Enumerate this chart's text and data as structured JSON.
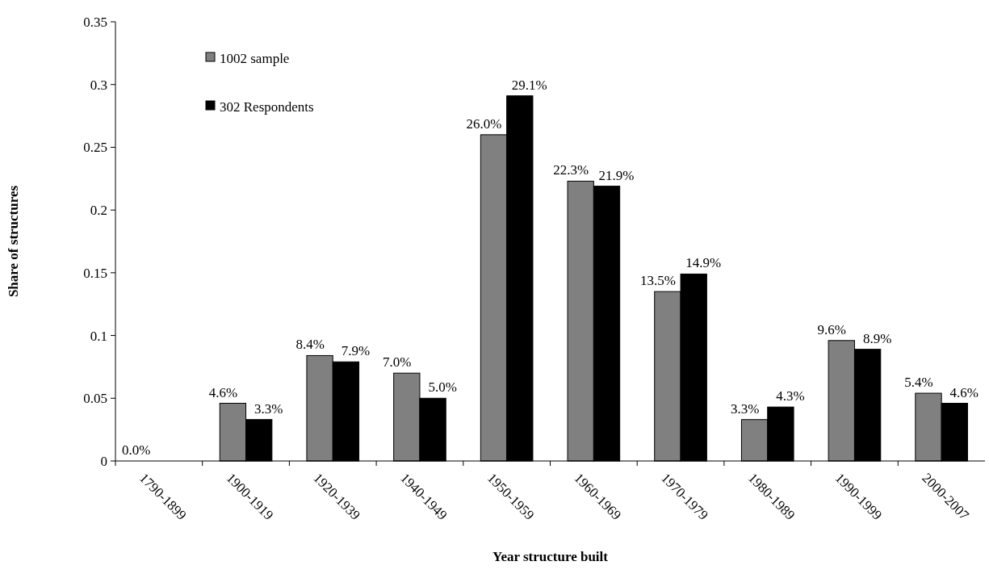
{
  "chart_data": {
    "type": "bar",
    "xlabel": "Year structure built",
    "ylabel": "Share of structures",
    "categories": [
      "1790-1899",
      "1900-1919",
      "1920-1939",
      "1940-1949",
      "1950-1959",
      "1960-1969",
      "1970-1979",
      "1980-1989",
      "1990-1999",
      "2000-2007"
    ],
    "series": [
      {
        "name": "1002 sample",
        "color": "#808080",
        "values": [
          0,
          0.046,
          0.084,
          0.07,
          0.26,
          0.223,
          0.135,
          0.033,
          0.096,
          0.054
        ],
        "value_labels": [
          "0.0%",
          "4.6%",
          "8.4%",
          "7.0%",
          "26.0%",
          "22.3%",
          "13.5%",
          "3.3%",
          "9.6%",
          "5.4%"
        ]
      },
      {
        "name": "302 Respondents",
        "color": "#000000",
        "values": [
          0,
          0.033,
          0.079,
          0.05,
          0.291,
          0.219,
          0.149,
          0.043,
          0.089,
          0.046
        ],
        "value_labels": [
          null,
          "3.3%",
          "7.9%",
          "5.0%",
          "29.1%",
          "21.9%",
          "14.9%",
          "4.3%",
          "8.9%",
          "4.6%"
        ]
      }
    ],
    "ylim": [
      0,
      0.35
    ],
    "yticks": [
      0,
      0.05,
      0.1,
      0.15,
      0.2,
      0.25,
      0.3,
      0.35
    ],
    "legend": "top left",
    "grid": false
  }
}
